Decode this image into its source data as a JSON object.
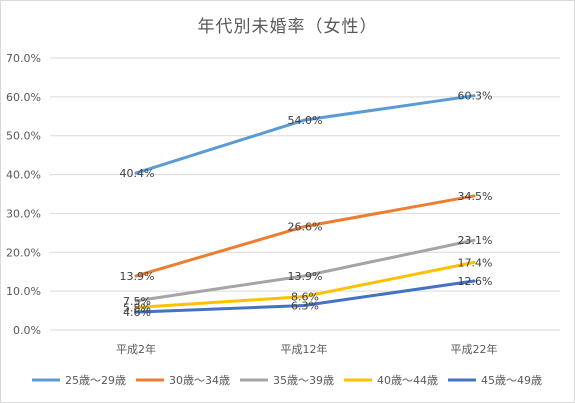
{
  "chart_data": {
    "type": "line",
    "title": "年代別未婚率（女性）",
    "categories": [
      "平成2年",
      "平成12年",
      "平成22年"
    ],
    "ylim": [
      0,
      70
    ],
    "yticks": [
      0,
      10,
      20,
      30,
      40,
      50,
      60,
      70
    ],
    "ytick_format": "percent_1dp",
    "grid": true,
    "legend_position": "bottom",
    "series": [
      {
        "name": "25歳～29歳",
        "color": "#5b9bd5",
        "values": [
          40.4,
          54.0,
          60.3
        ],
        "labels": [
          "40.4%",
          "54.0%",
          "60.3%"
        ]
      },
      {
        "name": "30歳～34歳",
        "color": "#ed7d31",
        "values": [
          13.9,
          26.6,
          34.5
        ],
        "labels": [
          "13.9%",
          "26.6%",
          "34.5%"
        ]
      },
      {
        "name": "35歳～39歳",
        "color": "#a5a5a5",
        "values": [
          7.5,
          13.9,
          23.1
        ],
        "labels": [
          "7.5%",
          "13.9%",
          "23.1%"
        ]
      },
      {
        "name": "40歳～44歳",
        "color": "#ffc000",
        "values": [
          5.8,
          8.6,
          17.4
        ],
        "labels": [
          "5.8%",
          "8.6%",
          "17.4%"
        ]
      },
      {
        "name": "45歳～49歳",
        "color": "#4472c4",
        "values": [
          4.6,
          6.3,
          12.6
        ],
        "labels": [
          "4.6%",
          "6.3%",
          "12.6%"
        ]
      }
    ]
  }
}
